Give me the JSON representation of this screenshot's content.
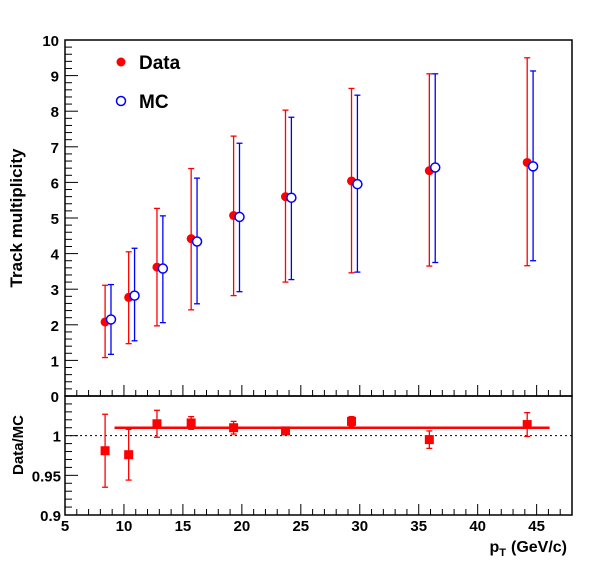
{
  "chart_data": [
    {
      "type": "scatter",
      "ylabel": "Track multiplicity",
      "xlim": [
        5,
        48
      ],
      "ylim": [
        0,
        10
      ],
      "xticks": [
        5,
        10,
        15,
        20,
        25,
        30,
        35,
        40,
        45
      ],
      "yticks": [
        0,
        1,
        2,
        3,
        4,
        5,
        6,
        7,
        8,
        9,
        10
      ],
      "grid": false,
      "legend": "top-left",
      "series": [
        {
          "name": "Data",
          "marker": "filled-circle",
          "color": "#ff0000",
          "x": [
            8.4,
            10.4,
            12.8,
            15.7,
            19.3,
            23.7,
            29.3,
            35.9,
            44.2
          ],
          "y": [
            2.08,
            2.77,
            3.62,
            4.42,
            5.07,
            5.6,
            6.04,
            6.33,
            6.56
          ],
          "err_low": [
            1.0,
            1.3,
            1.65,
            2.0,
            2.25,
            2.4,
            2.58,
            2.68,
            2.9
          ],
          "err_high": [
            1.03,
            1.28,
            1.65,
            1.97,
            2.23,
            2.43,
            2.6,
            2.72,
            2.94
          ]
        },
        {
          "name": "MC",
          "marker": "open-circle",
          "color": "#0000ff",
          "x": [
            8.9,
            10.9,
            13.3,
            16.2,
            19.8,
            24.2,
            29.8,
            36.4,
            44.7
          ],
          "y": [
            2.15,
            2.82,
            3.58,
            4.34,
            5.03,
            5.57,
            5.95,
            6.42,
            6.45
          ],
          "err_low": [
            0.98,
            1.27,
            1.52,
            1.75,
            2.1,
            2.3,
            2.47,
            2.67,
            2.65
          ],
          "err_high": [
            0.98,
            1.33,
            1.48,
            1.78,
            2.07,
            2.26,
            2.5,
            2.63,
            2.68
          ]
        }
      ]
    },
    {
      "type": "scatter",
      "xlabel_main": "p",
      "xlabel_sub": "T",
      "xlabel_unit": "(GeV/c)",
      "ylabel": "Data/MC",
      "xlim": [
        5,
        48
      ],
      "ylim": [
        0.9,
        1.05
      ],
      "xticks": [
        5,
        10,
        15,
        20,
        25,
        30,
        35,
        40,
        45
      ],
      "yticks": [
        0.9,
        0.95,
        1
      ],
      "grid": false,
      "reference_line": 1,
      "fit_line": {
        "y": 1.01,
        "x_start": 9.2,
        "x_end": 46.1,
        "color": "#ff0000"
      },
      "series": [
        {
          "marker": "filled-square",
          "color": "#ff0000",
          "x": [
            8.4,
            10.4,
            12.8,
            15.7,
            19.3,
            23.7,
            29.3,
            35.9,
            44.2
          ],
          "y": [
            0.981,
            0.976,
            1.015,
            1.016,
            1.01,
            1.006,
            1.018,
            0.995,
            1.014
          ],
          "err_low": [
            0.046,
            0.032,
            0.017,
            0.008,
            0.008,
            0.004,
            0.006,
            0.011,
            0.015
          ],
          "err_high": [
            0.046,
            0.032,
            0.017,
            0.008,
            0.008,
            0.004,
            0.006,
            0.011,
            0.015
          ]
        }
      ]
    }
  ]
}
